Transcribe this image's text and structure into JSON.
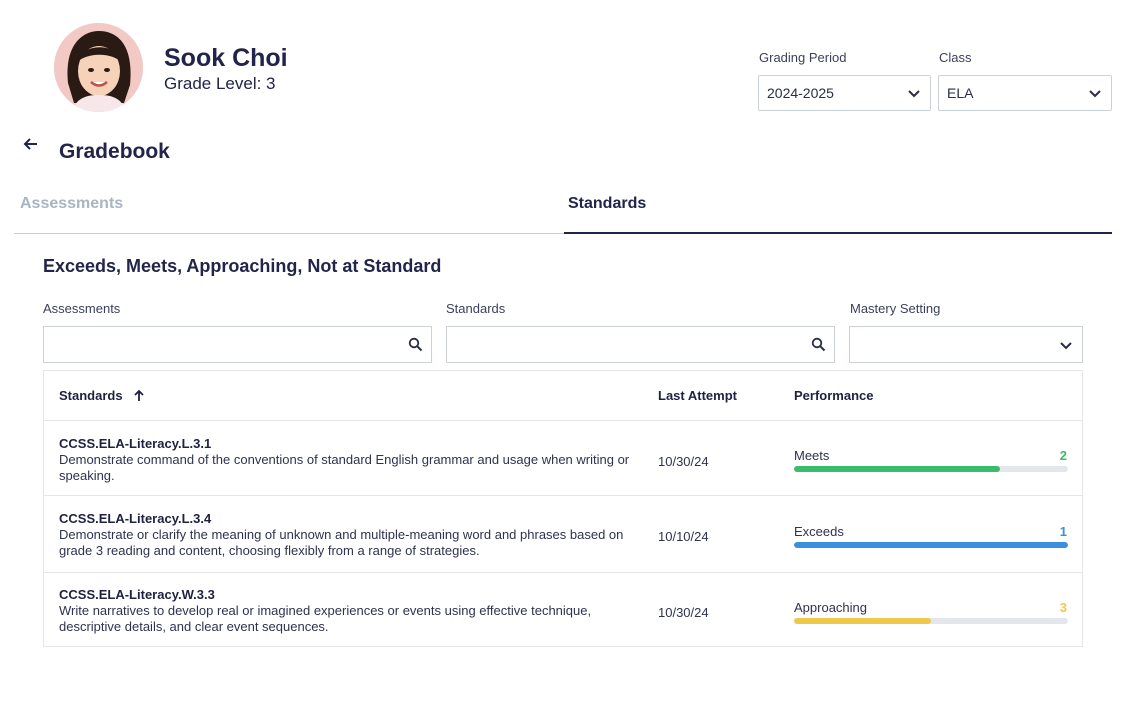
{
  "student": {
    "name": "Sook Choi",
    "grade_level": "Grade Level: 3"
  },
  "filters_top": {
    "grading_period_label": "Grading Period",
    "grading_period_value": "2024-2025",
    "class_label": "Class",
    "class_value": "ELA"
  },
  "page": {
    "title": "Gradebook"
  },
  "tabs": [
    {
      "label": "Assessments",
      "active": false
    },
    {
      "label": "Standards",
      "active": true
    }
  ],
  "section": {
    "title": "Exceeds, Meets, Approaching, Not at Standard"
  },
  "filters": {
    "assessments_label": "Assessments",
    "standards_label": "Standards",
    "mastery_label": "Mastery Setting"
  },
  "table": {
    "headers": {
      "standards": "Standards",
      "last_attempt": "Last Attempt",
      "performance": "Performance"
    },
    "rows": [
      {
        "code": "CCSS.ELA-Literacy.L.3.1",
        "description": "Demonstrate command of the conventions of standard English grammar and usage when writing or speaking.",
        "last_attempt": "10/30/24",
        "performance": "Meets",
        "count": "2",
        "progress": 0.75,
        "color": "#3dbb6c"
      },
      {
        "code": "CCSS.ELA-Literacy.L.3.4",
        "description": "Demonstrate or clarify the meaning of unknown and multiple-meaning word and phrases based on grade 3 reading and content, choosing flexibly from a range of strategies.",
        "last_attempt": "10/10/24",
        "performance": "Exceeds",
        "count": "1",
        "progress": 1.0,
        "color": "#3a8fde"
      },
      {
        "code": "CCSS.ELA-Literacy.W.3.3",
        "description": "Write narratives to develop real or imagined experiences or events using effective technique, descriptive details, and clear event sequences.",
        "last_attempt": "10/30/24",
        "performance": "Approaching",
        "count": "3",
        "progress": 0.5,
        "color": "#efc84a"
      }
    ]
  }
}
